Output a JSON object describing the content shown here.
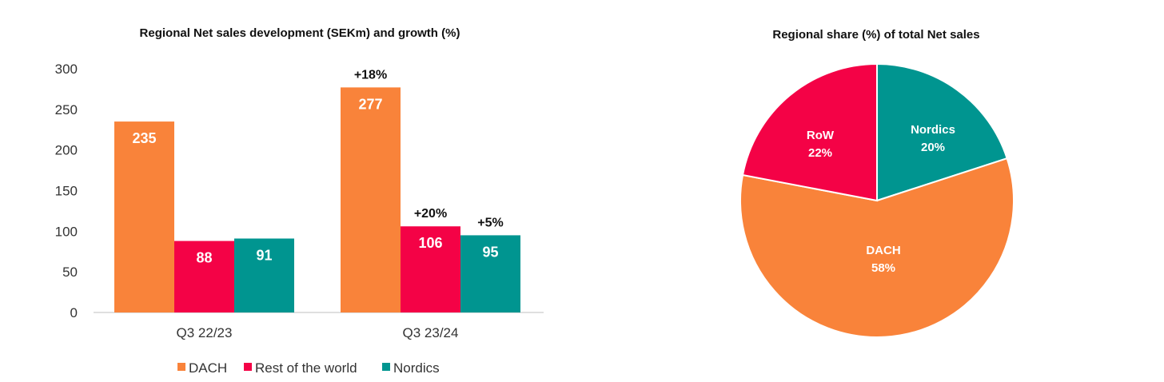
{
  "chart_data": [
    {
      "type": "bar",
      "title": "Regional Net sales development (SEKm) and growth (%)",
      "categories": [
        "Q3 22/23",
        "Q3 23/24"
      ],
      "series": [
        {
          "name": "DACH",
          "color": "#F9833A",
          "values": [
            235,
            277
          ],
          "growth": [
            "",
            "+18%"
          ]
        },
        {
          "name": "Rest of the world",
          "color": "#F40246",
          "values": [
            88,
            106
          ],
          "growth": [
            "",
            "+20%"
          ]
        },
        {
          "name": "Nordics",
          "color": "#009590",
          "values": [
            91,
            95
          ],
          "growth": [
            "",
            "+5%"
          ]
        }
      ],
      "ylim": [
        0,
        300
      ],
      "yticks": [
        0,
        50,
        100,
        150,
        200,
        250,
        300
      ],
      "grid": false,
      "legend": "bottom"
    },
    {
      "type": "pie",
      "title": "Regional share (%) of total Net sales",
      "slices": [
        {
          "name": "Nordics",
          "value": 20,
          "label": "20%",
          "color": "#009590"
        },
        {
          "name": "DACH",
          "value": 58,
          "label": "58%",
          "color": "#F9833A"
        },
        {
          "name": "RoW",
          "value": 22,
          "label": "22%",
          "color": "#F40246"
        }
      ]
    }
  ]
}
